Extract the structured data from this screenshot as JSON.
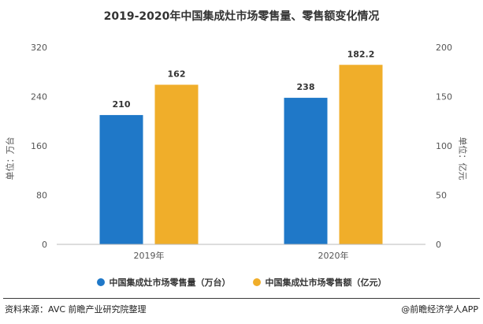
{
  "title": "2019-2020年中国集成灶市场零售量、零售额变化情况",
  "footer": {
    "source": "资料来源：AVC 前瞻产业研究院整理",
    "brand": "@前瞻经济学人APP"
  },
  "chart_data": {
    "type": "bar",
    "title": "2019-2020年中国集成灶市场零售量、零售额变化情况",
    "categories": [
      "2019年",
      "2020年"
    ],
    "series": [
      {
        "name": "中国集成灶市场零售量（万台）",
        "values": [
          210,
          238
        ],
        "axis": "left",
        "color": "#1f78c8"
      },
      {
        "name": "中国集成灶市场零售额（亿元）",
        "values": [
          162,
          182.2
        ],
        "axis": "right",
        "color": "#f0ae2a"
      }
    ],
    "value_labels": [
      [
        "210",
        "238"
      ],
      [
        "162",
        "182.2"
      ]
    ],
    "ylabel": "单位：万台",
    "y2label": "单位：亿元",
    "ylim": [
      0,
      320
    ],
    "y2lim": [
      0,
      200
    ],
    "yticks": [
      0,
      80,
      160,
      240,
      320
    ],
    "y2ticks": [
      0,
      50,
      100,
      150,
      200
    ],
    "legend_position": "bottom",
    "grid": false
  }
}
